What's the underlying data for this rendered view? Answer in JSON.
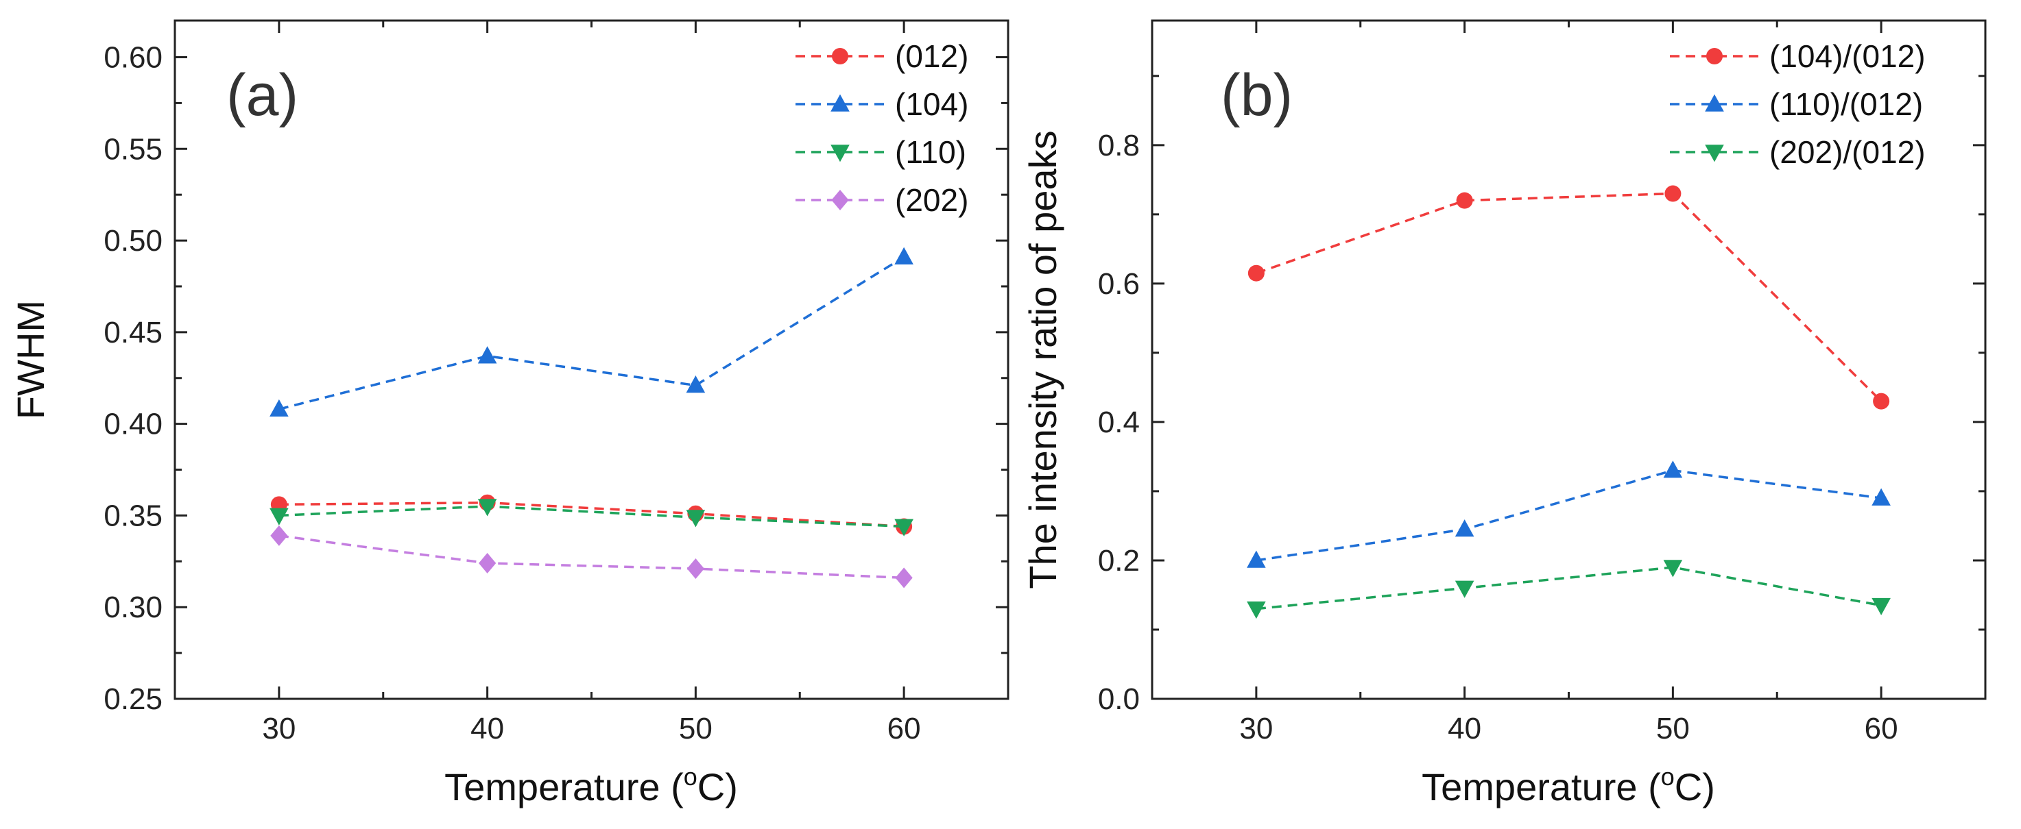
{
  "chart_data": [
    {
      "type": "line",
      "panel_label": "(a)",
      "xlabel": "Temperature (",
      "xlabel_sup": "o",
      "xlabel_tail": "C)",
      "ylabel": "FWHM",
      "x": [
        30,
        40,
        50,
        60
      ],
      "xlim": [
        25,
        65
      ],
      "ylim": [
        0.25,
        0.62
      ],
      "xticks": [
        "30",
        "40",
        "50",
        "60"
      ],
      "yticks": [
        "0.25",
        "0.30",
        "0.35",
        "0.40",
        "0.45",
        "0.50",
        "0.55",
        "0.60"
      ],
      "legend_position": "top-right",
      "series": [
        {
          "name": "(012)",
          "color": "#f03c3c",
          "marker": "circle",
          "values": [
            0.356,
            0.357,
            0.351,
            0.344
          ]
        },
        {
          "name": "(104)",
          "color": "#1f6fd6",
          "marker": "triangle-up",
          "values": [
            0.408,
            0.437,
            0.421,
            0.491
          ]
        },
        {
          "name": "(110)",
          "color": "#1ea35a",
          "marker": "triangle-down",
          "values": [
            0.35,
            0.355,
            0.349,
            0.344
          ]
        },
        {
          "name": "(202)",
          "color": "#c47ee0",
          "marker": "diamond",
          "values": [
            0.339,
            0.324,
            0.321,
            0.316
          ]
        }
      ]
    },
    {
      "type": "line",
      "panel_label": "(b)",
      "xlabel": "Temperature (",
      "xlabel_sup": "o",
      "xlabel_tail": "C)",
      "ylabel": "The intensity ratio of peaks",
      "x": [
        30,
        40,
        50,
        60
      ],
      "xlim": [
        25,
        65
      ],
      "ylim": [
        0.0,
        0.98
      ],
      "xticks": [
        "30",
        "40",
        "50",
        "60"
      ],
      "yticks": [
        "0.0",
        "0.2",
        "0.4",
        "0.6",
        "0.8"
      ],
      "legend_position": "top-right",
      "series": [
        {
          "name": "(104)/(012)",
          "color": "#f03c3c",
          "marker": "circle",
          "values": [
            0.615,
            0.72,
            0.73,
            0.43
          ]
        },
        {
          "name": "(110)/(012)",
          "color": "#1f6fd6",
          "marker": "triangle-up",
          "values": [
            0.2,
            0.245,
            0.33,
            0.29
          ]
        },
        {
          "name": "(202)/(012)",
          "color": "#1ea35a",
          "marker": "triangle-down",
          "values": [
            0.13,
            0.16,
            0.19,
            0.135
          ]
        }
      ]
    }
  ]
}
